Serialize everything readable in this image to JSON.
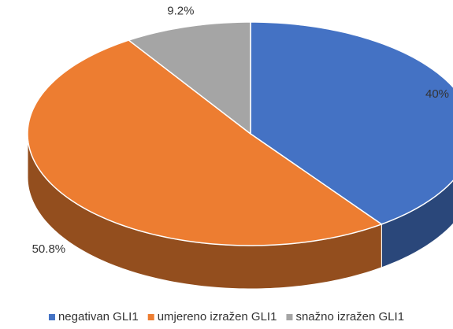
{
  "chart_data": {
    "type": "pie3d",
    "categories": [
      "negativan GLI1",
      "umjereno izražen GLI1",
      "snažno izražen GLI1"
    ],
    "values": [
      40,
      50.8,
      9.2
    ],
    "value_labels": [
      "40%",
      "50.8%",
      "9.2%"
    ],
    "colors": [
      "#4472c4",
      "#ed7d31",
      "#a5a5a5"
    ],
    "legend": "bottom"
  }
}
